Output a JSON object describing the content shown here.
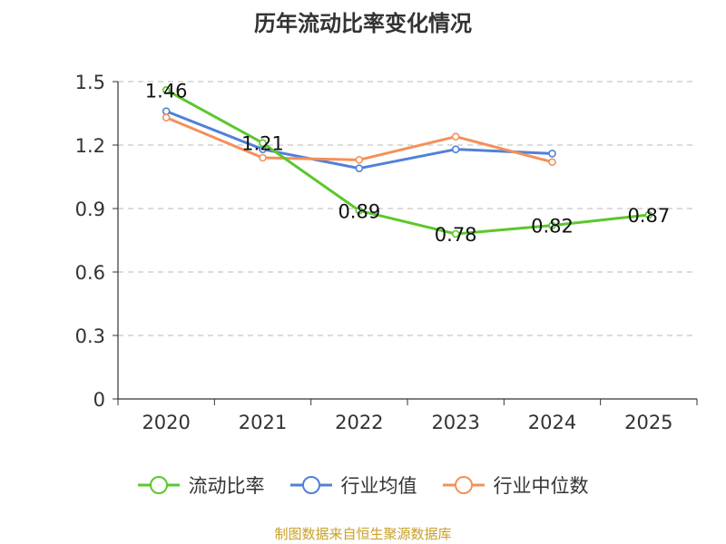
{
  "title": "历年流动比率变化情况",
  "source": "制图数据来自恒生聚源数据库",
  "colors": {
    "series_0": "#5cc72c",
    "series_1": "#4f81d9",
    "series_2": "#f5905a",
    "axis": "#333333",
    "grid": "#c8c8c8"
  },
  "chart_data": {
    "type": "line",
    "title": "历年流动比率变化情况",
    "categories": [
      "2020",
      "2021",
      "2022",
      "2023",
      "2024",
      "2025"
    ],
    "ylim": [
      0,
      1.5
    ],
    "yticks": [
      "0",
      "0.3",
      "0.6",
      "0.9",
      "1.2",
      "1.5"
    ],
    "grid": true,
    "legend_position": "bottom",
    "series": [
      {
        "name": "流动比率",
        "values": [
          1.46,
          1.21,
          0.89,
          0.78,
          0.82,
          0.87
        ],
        "labels": [
          "1.46",
          "1.21",
          "0.89",
          "0.78",
          "0.82",
          "0.87"
        ],
        "color": "#5cc72c"
      },
      {
        "name": "行业均值",
        "values": [
          1.36,
          1.18,
          1.09,
          1.18,
          1.16,
          null
        ],
        "color": "#4f81d9"
      },
      {
        "name": "行业中位数",
        "values": [
          1.33,
          1.14,
          1.13,
          1.24,
          1.12,
          null
        ],
        "color": "#f5905a"
      }
    ]
  }
}
